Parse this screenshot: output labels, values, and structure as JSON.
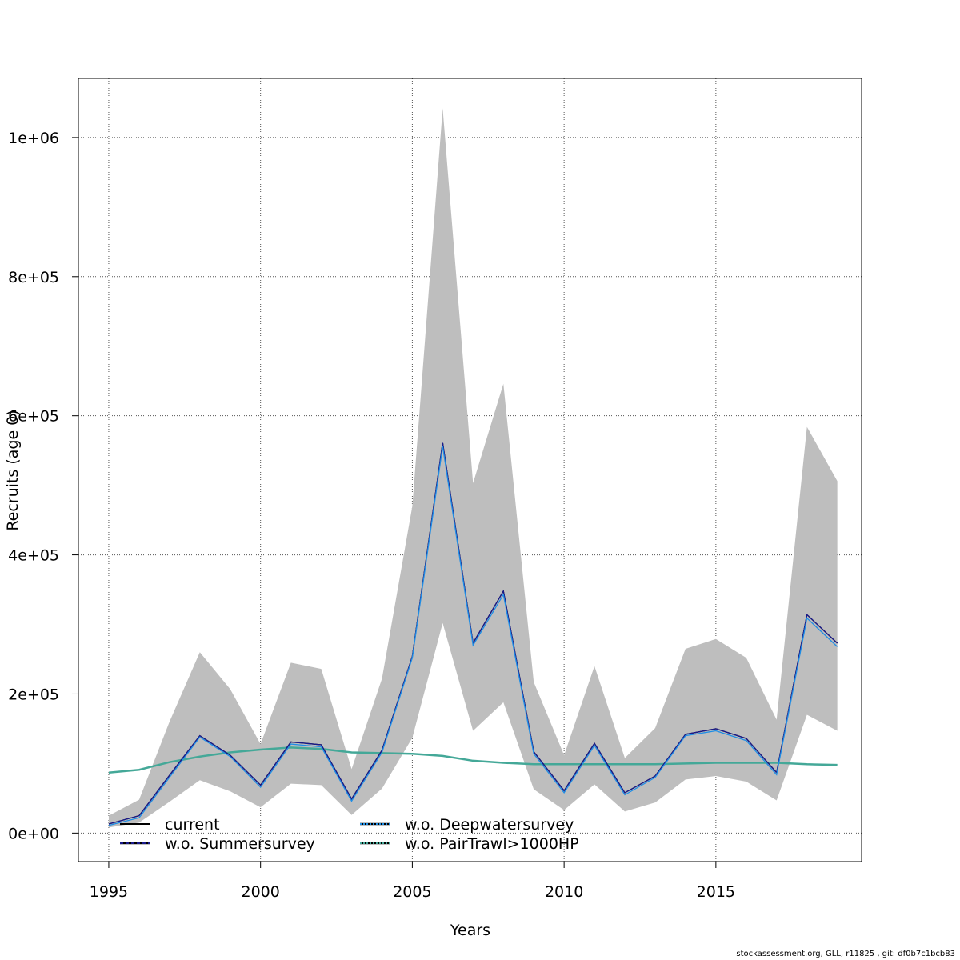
{
  "footer": "stockassessment.org, GLL, r11825 , git: df0b7c1bcb83",
  "chart_data": {
    "type": "line",
    "xlabel": "Years",
    "ylabel": "Recruits (age 0)",
    "xlim": [
      1994,
      2019.8
    ],
    "ylim": [
      -41000,
      1085000
    ],
    "xticks": [
      1995,
      2000,
      2005,
      2010,
      2015
    ],
    "yticks": [
      0,
      200000,
      400000,
      600000,
      800000,
      1000000
    ],
    "ytick_labels": [
      "0e+00",
      "2e+05",
      "4e+05",
      "6e+05",
      "8e+05",
      "1e+06"
    ],
    "grid": true,
    "legend_position": "bottom-left",
    "x": [
      1995,
      1996,
      1997,
      1998,
      1999,
      2000,
      2001,
      2002,
      2003,
      2004,
      2005,
      2006,
      2007,
      2008,
      2009,
      2010,
      2011,
      2012,
      2013,
      2014,
      2015,
      2016,
      2017,
      2018,
      2019
    ],
    "confidence_band": {
      "color": "#bebebe",
      "lower": [
        8000,
        15000,
        45000,
        76000,
        60000,
        37000,
        71000,
        69000,
        26000,
        64000,
        137000,
        302000,
        147000,
        188000,
        63000,
        33000,
        70000,
        31000,
        44000,
        77000,
        82000,
        74000,
        47000,
        170000,
        147000
      ],
      "upper": [
        25000,
        48000,
        160000,
        260000,
        207000,
        128000,
        245000,
        236000,
        92000,
        222000,
        470000,
        1042000,
        503000,
        646000,
        217000,
        112000,
        240000,
        108000,
        151000,
        265000,
        279000,
        252000,
        163000,
        584000,
        506000
      ]
    },
    "series": [
      {
        "name": "current",
        "color": "#000000",
        "dash": "solid",
        "values": [
          13000,
          25000,
          83000,
          140000,
          112000,
          69000,
          131000,
          127000,
          49000,
          119000,
          254000,
          561000,
          273000,
          348000,
          117000,
          61000,
          129000,
          58000,
          82000,
          142000,
          150000,
          136000,
          87000,
          314000,
          273000
        ]
      },
      {
        "name": "w.o. Summersurvey",
        "color": "#1a1a8c",
        "dash": "dashed",
        "values": [
          13000,
          25000,
          83000,
          140000,
          112000,
          69000,
          131000,
          127000,
          49000,
          119000,
          254000,
          561000,
          273000,
          348000,
          117000,
          61000,
          129000,
          58000,
          82000,
          142000,
          150000,
          136000,
          87000,
          314000,
          273000
        ]
      },
      {
        "name": "w.o. Deepwatersurvey",
        "color": "#1f8ee6",
        "dash": "dotted",
        "values": [
          11000,
          22000,
          80000,
          138000,
          110000,
          66000,
          128000,
          124000,
          46000,
          116000,
          252000,
          556000,
          270000,
          343000,
          114000,
          58000,
          126000,
          55000,
          80000,
          140000,
          147000,
          133000,
          84000,
          309000,
          268000
        ]
      },
      {
        "name": "w.o. PairTrawl>1000HP",
        "color": "#44a898",
        "dash": "dotted",
        "values": [
          87000,
          91000,
          102000,
          110000,
          116000,
          120000,
          123000,
          121000,
          116000,
          115000,
          114000,
          111000,
          104000,
          101000,
          99000,
          99000,
          99000,
          99000,
          99000,
          100000,
          101000,
          101000,
          101000,
          99000,
          98000
        ]
      }
    ]
  }
}
